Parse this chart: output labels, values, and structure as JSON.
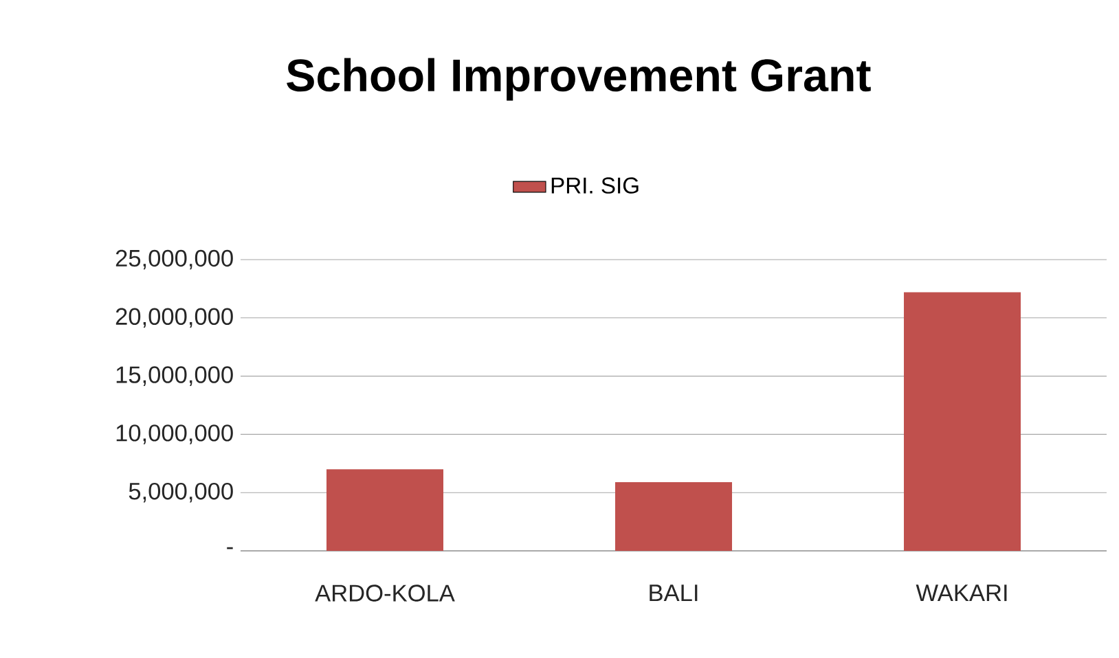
{
  "chart_data": {
    "type": "bar",
    "title": "School Improvement Grant",
    "categories": [
      "ARDO-KOLA",
      "BALI",
      "WAKARI"
    ],
    "series": [
      {
        "name": "PRI. SIG",
        "color": "#c0504d",
        "values": [
          7000000,
          5900000,
          22200000
        ]
      }
    ],
    "ylim": [
      0,
      25000000
    ],
    "yticks": [
      {
        "value": 0,
        "label": "-"
      },
      {
        "value": 5000000,
        "label": "5,000,000"
      },
      {
        "value": 10000000,
        "label": "10,000,000"
      },
      {
        "value": 15000000,
        "label": "15,000,000"
      },
      {
        "value": 20000000,
        "label": "20,000,000"
      },
      {
        "value": 25000000,
        "label": "25,000,000"
      }
    ],
    "grid": "y",
    "legend": "top"
  }
}
